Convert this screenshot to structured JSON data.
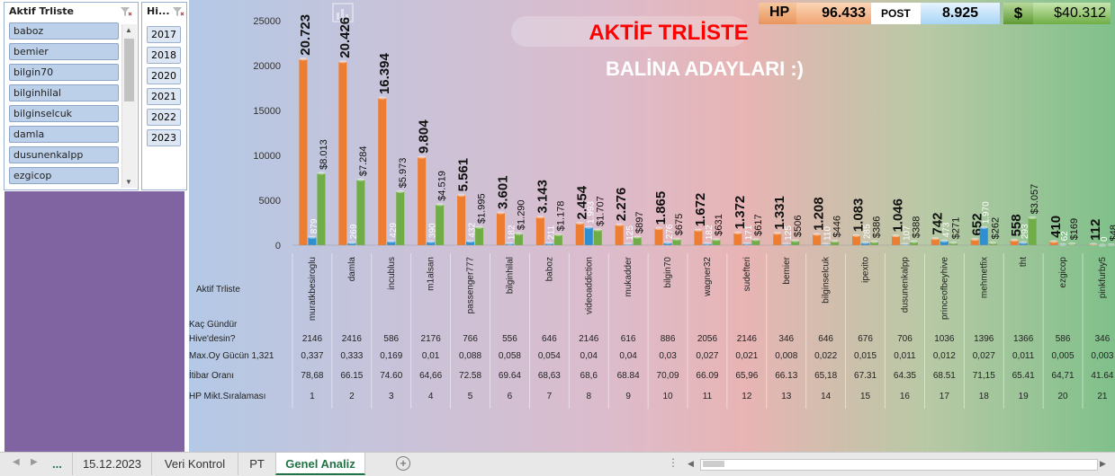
{
  "slicer_users": {
    "title": "Aktif Trliste",
    "items": [
      "baboz",
      "bemier",
      "bilgin70",
      "bilginhilal",
      "bilginselcuk",
      "damla",
      "dusunenkalpp",
      "ezgicop"
    ]
  },
  "slicer_years": {
    "title": "Hi...",
    "items": [
      "2017",
      "2018",
      "2020",
      "2021",
      "2022",
      "2023"
    ]
  },
  "stats": {
    "hp_label": "HP",
    "hp_value": "96.433",
    "post_label": "POST",
    "post_value": "8.925",
    "dollar_label": "$",
    "dollar_value": "$40.312"
  },
  "sheet_tabs": {
    "more": "...",
    "tabs": [
      "15.12.2023",
      "Veri Kontrol",
      "PT",
      "Genel Analiz"
    ],
    "active": "Genel Analiz"
  },
  "colors": {
    "hp": "#ed7d31",
    "post": "#2e8fd1",
    "dollar": "#70ad47",
    "title_red": "#ff0000"
  },
  "chart_data": {
    "type": "bar",
    "title": "AKTİF TRLİSTE",
    "subtitle": "BALİNA ADAYLARI :)",
    "xlabel": "Aktif Trliste",
    "ylim": [
      0,
      25000
    ],
    "yticks": [
      "0",
      "5000",
      "10000",
      "15000",
      "20000",
      "25000"
    ],
    "categories": [
      "muratkbesiroglu",
      "damla",
      "incublus",
      "m1alsan",
      "passenger777",
      "bilginhilal",
      "baboz",
      "videoaddiction",
      "mukadder",
      "bilgin70",
      "wagner32",
      "sudefteri",
      "bemier",
      "bilginselcuk",
      "ipexito",
      "dusunenkalpp",
      "princeofbeyhive",
      "mehmetfix",
      "tht",
      "ezgicop",
      "pinkfurby5"
    ],
    "series": [
      {
        "key": "hp",
        "values": [
          20723,
          20426,
          16394,
          9804,
          5561,
          3601,
          3143,
          2454,
          2276,
          1865,
          1672,
          1372,
          1331,
          1208,
          1083,
          1046,
          742,
          652,
          558,
          410,
          112
        ],
        "labels": [
          "20.723",
          "20.426",
          "16.394",
          "9.804",
          "5.561",
          "3.601",
          "3.143",
          "2.454",
          "2.276",
          "1.865",
          "1.672",
          "1.372",
          "1.331",
          "1.208",
          "1.083",
          "1.046",
          "742",
          "652",
          "558",
          "410",
          "112"
        ]
      },
      {
        "key": "post",
        "values": [
          879,
          269,
          429,
          390,
          432,
          182,
          211,
          1993,
          125,
          276,
          182,
          171,
          125,
          110,
          285,
          107,
          473,
          1970,
          293,
          62,
          0
        ],
        "labels": [
          "879",
          "269",
          "429",
          "390",
          "432",
          "182",
          "211",
          "1.993",
          "125",
          "276",
          "182",
          "171",
          "125",
          "110",
          "285",
          "107",
          "473",
          "1.970",
          "293",
          "62",
          "0"
        ]
      },
      {
        "key": "dollar",
        "values": [
          8013,
          7284,
          5973,
          4519,
          1995,
          1290,
          1178,
          1707,
          897,
          675,
          631,
          617,
          506,
          446,
          386,
          388,
          271,
          262,
          3057,
          169,
          48
        ],
        "labels": [
          "$8.013",
          "$7.284",
          "$5.973",
          "$4.519",
          "$1.995",
          "$1.290",
          "$1.178",
          "$1.707",
          "$897",
          "$675",
          "$631",
          "$617",
          "$506",
          "$446",
          "$386",
          "$388",
          "$271",
          "$262",
          "$3.057",
          "$169",
          "$48"
        ]
      }
    ],
    "table": {
      "row_labels": [
        "Kaç Gündür",
        "Hive'desin?",
        "Max.Oy Gücün 1,321",
        "İtibar Oranı",
        "HP Mikt.Sıralaması"
      ],
      "days": [
        "2146",
        "2416",
        "586",
        "2176",
        "766",
        "556",
        "646",
        "2146",
        "616",
        "886",
        "2056",
        "2146",
        "346",
        "646",
        "676",
        "706",
        "1036",
        "1396",
        "1366",
        "586",
        "346"
      ],
      "vote_power": [
        "0,337",
        "0,333",
        "0,169",
        "0,01",
        "0,088",
        "0,058",
        "0,054",
        "0,04",
        "0,04",
        "0,03",
        "0,027",
        "0,021",
        "0,008",
        "0,022",
        "0,015",
        "0,011",
        "0,012",
        "0,027",
        "0,011",
        "0,005",
        "0,003"
      ],
      "reputation": [
        "78,68",
        "66.15",
        "74.60",
        "64,66",
        "72.58",
        "69.64",
        "68,63",
        "68,6",
        "68.84",
        "70,09",
        "66.09",
        "65,96",
        "66.13",
        "65,18",
        "67.31",
        "64.35",
        "68.51",
        "71,15",
        "65.41",
        "64,71",
        "41.64"
      ],
      "rank": [
        "1",
        "2",
        "3",
        "4",
        "5",
        "6",
        "7",
        "8",
        "9",
        "10",
        "11",
        "12",
        "13",
        "14",
        "15",
        "16",
        "17",
        "18",
        "19",
        "20",
        "21"
      ]
    }
  }
}
